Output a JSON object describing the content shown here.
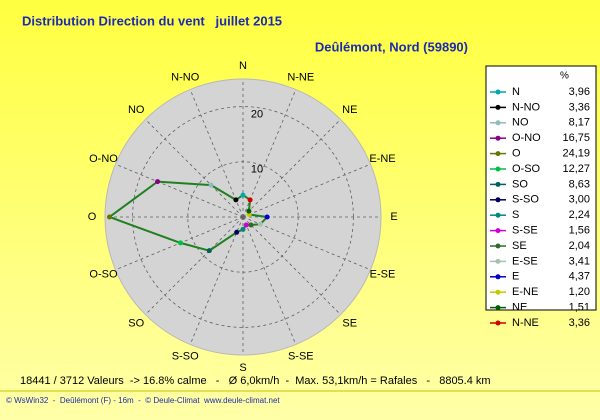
{
  "chart_data": {
    "type": "radar",
    "title": "Distribution Direction du vent   juillet 2015",
    "subtitle": "Deûlémont, Nord (59890)",
    "categories": [
      "N",
      "N-NO",
      "NO",
      "O-NO",
      "O",
      "O-SO",
      "SO",
      "S-SO",
      "S",
      "S-SE",
      "SE",
      "E-SE",
      "E",
      "E-NE",
      "NE",
      "N-NE"
    ],
    "values": [
      3.96,
      3.36,
      8.17,
      16.75,
      24.19,
      12.27,
      8.63,
      3.0,
      2.24,
      1.56,
      2.04,
      3.41,
      4.37,
      1.2,
      1.51,
      3.36
    ],
    "value_labels": [
      "3,96",
      "3,36",
      "8,17",
      "16,75",
      "24,19",
      "12,27",
      "8,63",
      "3,00",
      "2,24",
      "1,56",
      "2,04",
      "3,41",
      "4,37",
      "1,20",
      "1,51",
      "3,36"
    ],
    "colors": [
      "#00a8a8",
      "#000000",
      "#8cbcbc",
      "#880088",
      "#667700",
      "#00c040",
      "#006060",
      "#000060",
      "#008880",
      "#d000d0",
      "#306830",
      "#a8c0b0",
      "#0000d0",
      "#c8c800",
      "#006000",
      "#d00000"
    ],
    "line_color": "#208020",
    "ylim": [
      0,
      25
    ],
    "yticks": [
      10,
      20
    ],
    "grid": true,
    "legend": "right",
    "legend_header": "%",
    "notes": [
      "18441 / 3712 Valeurs  -> 16.8% calme   -   Ø 6,0km/h  -  Max. 53,1km/h = Rafales   -   8805.4 km",
      "© WsWin32  -  Deûlémont (F) - 16m  -  © Deule-Climat  www.deule-climat.net"
    ]
  }
}
